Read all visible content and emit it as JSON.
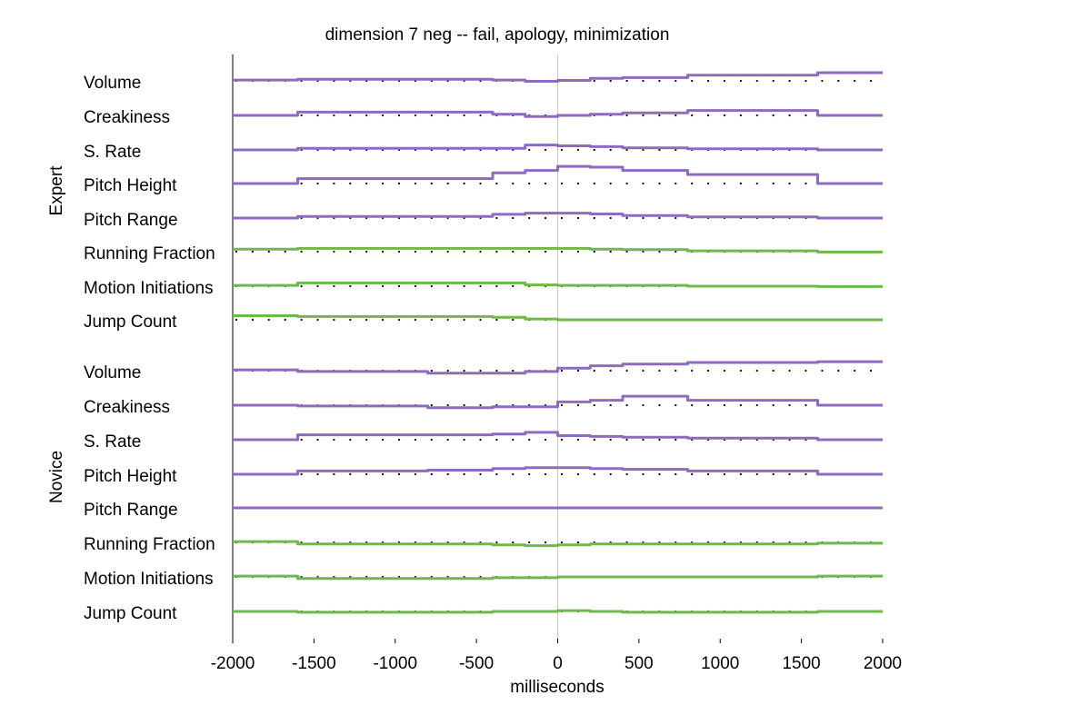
{
  "chart_data": {
    "type": "line",
    "title": "dimension 7 neg -- fail, apology, minimization",
    "xlabel": "milliseconds",
    "xlim": [
      -2000,
      2000
    ],
    "x_ticks": [
      "-2000",
      "-1500",
      "-1000",
      "-500",
      "0",
      "500",
      "1000",
      "1500",
      "2000"
    ],
    "x_tick_values": [
      -2000,
      -1500,
      -1000,
      -500,
      0,
      500,
      1000,
      1500,
      2000
    ],
    "zero_line": true,
    "grid": false,
    "colors": {
      "prosody": "#8e6bbd",
      "motion": "#6fb84c",
      "baseline": "#000000",
      "zero": "#c8c8c8"
    },
    "segment_edges": [
      -2000,
      -1600,
      -800,
      -400,
      -200,
      0,
      200,
      400,
      800,
      1600,
      2000
    ],
    "groups": [
      {
        "name": "Expert",
        "rows": [
          {
            "label": "Volume",
            "kind": "prosody",
            "values": [
              0.2,
              0.4,
              0.4,
              0.2,
              -0.1,
              0.1,
              0.6,
              0.8,
              1.4,
              2.0
            ]
          },
          {
            "label": "Creakiness",
            "kind": "prosody",
            "values": [
              0.0,
              0.8,
              0.8,
              0.3,
              -0.3,
              0.0,
              0.3,
              0.6,
              1.2,
              0.0
            ]
          },
          {
            "label": "S. Rate",
            "kind": "prosody",
            "values": [
              0.0,
              0.4,
              0.4,
              0.4,
              1.2,
              1.0,
              0.8,
              0.5,
              0.3,
              0.0
            ]
          },
          {
            "label": "Pitch Height",
            "kind": "prosody",
            "values": [
              0.0,
              1.2,
              1.2,
              2.6,
              3.2,
              4.2,
              4.0,
              3.2,
              2.2,
              0.0
            ]
          },
          {
            "label": "Pitch Range",
            "kind": "prosody",
            "values": [
              0.0,
              0.4,
              0.4,
              0.9,
              1.2,
              1.2,
              1.0,
              0.6,
              0.3,
              0.0
            ]
          },
          {
            "label": "Running Fraction",
            "kind": "motion",
            "values": [
              0.6,
              0.8,
              0.8,
              0.8,
              0.8,
              0.8,
              0.6,
              0.5,
              0.2,
              -0.1
            ]
          },
          {
            "label": "Motion Initiations",
            "kind": "motion",
            "values": [
              0.2,
              0.8,
              0.8,
              0.8,
              0.3,
              0.2,
              0.2,
              0.2,
              0.0,
              -0.1
            ]
          },
          {
            "label": "Jump Count",
            "kind": "motion",
            "values": [
              1.0,
              0.8,
              0.8,
              0.6,
              0.2,
              0.0,
              0.0,
              0.0,
              0.0,
              0.0
            ]
          }
        ]
      },
      {
        "name": "Novice",
        "rows": [
          {
            "label": "Volume",
            "kind": "prosody",
            "values": [
              0.2,
              -0.2,
              -0.6,
              -0.6,
              -0.2,
              0.6,
              1.2,
              1.6,
              2.0,
              2.2
            ]
          },
          {
            "label": "Creakiness",
            "kind": "prosody",
            "values": [
              0.0,
              -0.2,
              -0.6,
              -0.4,
              -0.4,
              0.8,
              1.2,
              2.2,
              1.2,
              0.0
            ]
          },
          {
            "label": "S. Rate",
            "kind": "prosody",
            "values": [
              0.0,
              1.2,
              1.2,
              1.4,
              1.8,
              1.0,
              0.8,
              0.6,
              0.4,
              0.0
            ]
          },
          {
            "label": "Pitch Height",
            "kind": "prosody",
            "values": [
              0.0,
              0.8,
              1.0,
              1.4,
              1.6,
              1.6,
              1.4,
              1.2,
              0.8,
              0.0
            ]
          },
          {
            "label": "Pitch Range",
            "kind": "prosody",
            "values": [
              0.0,
              0.0,
              0.0,
              0.0,
              0.0,
              0.0,
              0.0,
              0.0,
              0.0,
              0.0
            ]
          },
          {
            "label": "Running Fraction",
            "kind": "motion",
            "values": [
              0.2,
              -0.4,
              -0.4,
              -0.6,
              -0.8,
              -0.6,
              -0.4,
              -0.4,
              -0.4,
              -0.2
            ]
          },
          {
            "label": "Motion Initiations",
            "kind": "motion",
            "values": [
              0.2,
              -0.4,
              -0.4,
              -0.2,
              -0.2,
              0.0,
              0.0,
              0.0,
              0.0,
              0.2
            ]
          },
          {
            "label": "Jump Count",
            "kind": "motion",
            "values": [
              0.0,
              -0.2,
              -0.2,
              0.0,
              0.0,
              0.2,
              0.0,
              -0.2,
              -0.2,
              0.0
            ]
          }
        ]
      }
    ]
  }
}
